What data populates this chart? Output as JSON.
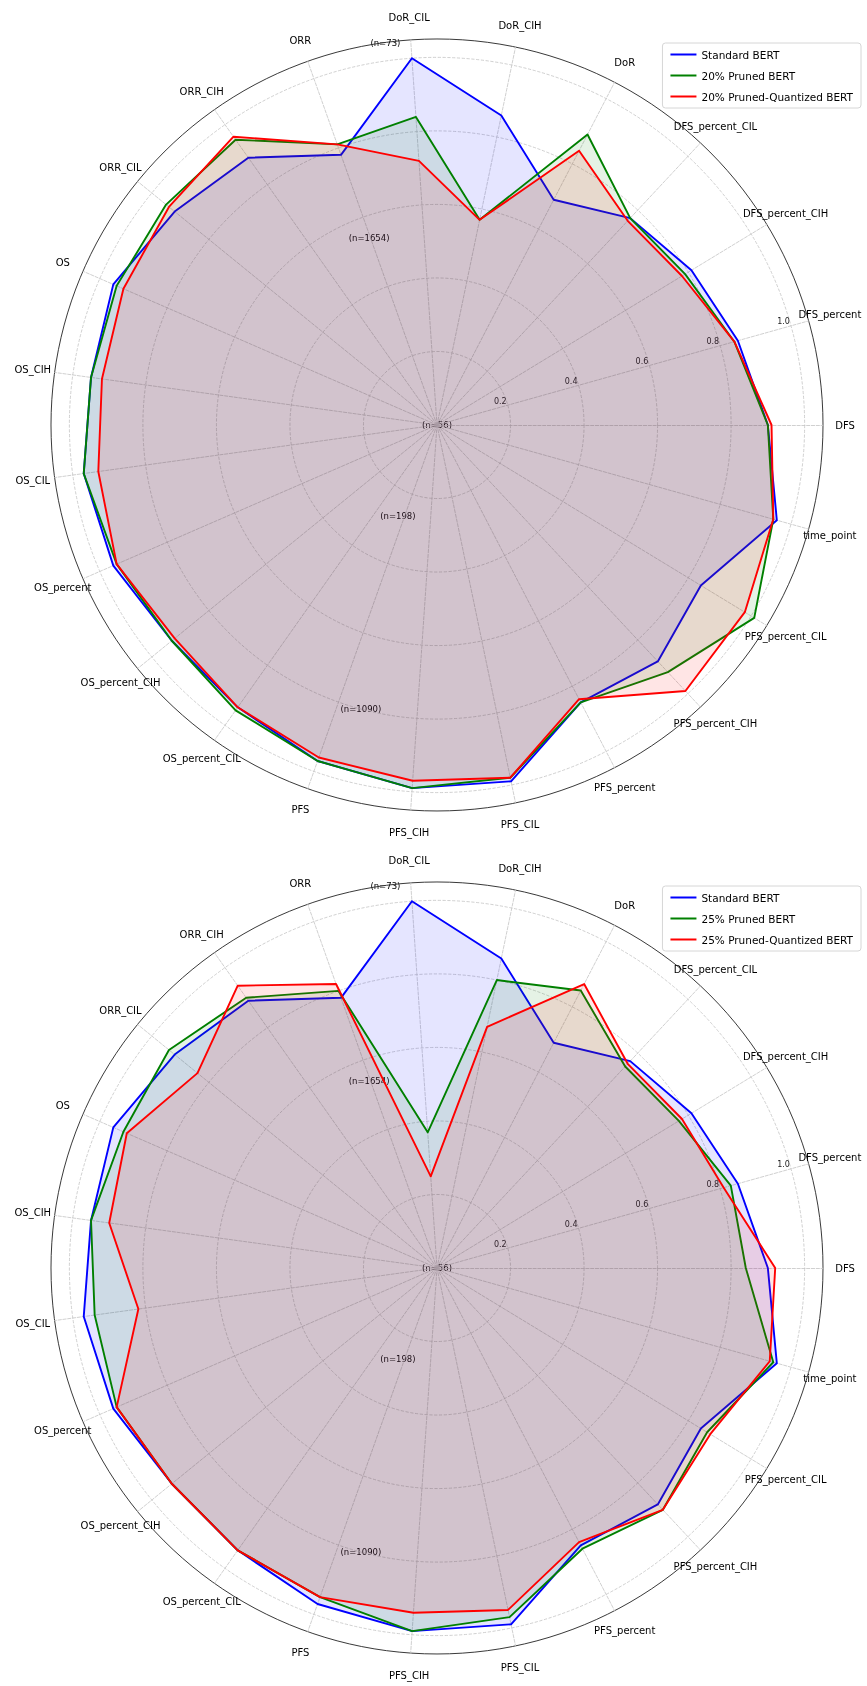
{
  "chart_data": [
    {
      "type": "radar",
      "categories": [
        "DoR_CIL",
        "DoR_CIH",
        "DoR",
        "DFS_percent_CIL",
        "DFS_percent_CIH",
        "DFS_percent",
        "DFS",
        "time_point",
        "PFS_percent_CIL",
        "PFS_percent_CIH",
        "PFS_percent",
        "PFS_CIL",
        "PFS_CIH",
        "PFS",
        "OS_percent_CIL",
        "OS_percent_CIH",
        "OS_percent",
        "OS_CIL",
        "OS_CIH",
        "OS",
        "ORR_CIL",
        "ORR_CIH",
        "ORR"
      ],
      "series": [
        {
          "name": "Standard BERT",
          "color": "#0000ff",
          "values": [
            1.0,
            0.86,
            0.69,
            0.77,
            0.81,
            0.85,
            0.9,
            0.96,
            0.84,
            0.88,
            0.85,
            0.99,
            0.99,
            0.97,
            0.94,
            0.93,
            0.96,
            0.97,
            0.95,
            0.96,
            0.92,
            0.89,
            0.78
          ]
        },
        {
          "name": "20% Pruned BERT",
          "color": "#008000",
          "values": [
            0.84,
            0.57,
            0.89,
            0.77,
            0.79,
            0.84,
            0.9,
            0.95,
            1.01,
            0.92,
            0.85,
            0.98,
            0.99,
            0.97,
            0.95,
            0.93,
            0.95,
            0.97,
            0.95,
            0.95,
            0.95,
            0.95,
            0.81
          ]
        },
        {
          "name": "20% Pruned-Quantized BERT",
          "color": "#ff0000",
          "values": [
            0.72,
            0.57,
            0.84,
            0.76,
            0.78,
            0.84,
            0.91,
            0.95,
            0.98,
            0.99,
            0.84,
            0.98,
            0.97,
            0.96,
            0.94,
            0.92,
            0.95,
            0.93,
            0.92,
            0.93,
            0.94,
            0.96,
            0.81
          ]
        }
      ],
      "ylim": [
        0,
        1.05
      ],
      "yticks": [
        0.2,
        0.4,
        0.6,
        0.8,
        {
          "value": 1.0,
          "label": "1.0"
        }
      ],
      "grid": true,
      "legend": "top right",
      "annotations": [
        "(n=73)",
        "(n=1654)",
        "(n=56)",
        "(n=198)",
        "(n=1090)"
      ]
    },
    {
      "type": "radar",
      "categories": [
        "DoR_CIL",
        "DoR_CIH",
        "DoR",
        "DFS_percent_CIL",
        "DFS_percent_CIH",
        "DFS_percent",
        "DFS",
        "time_point",
        "PFS_percent_CIL",
        "PFS_percent_CIH",
        "PFS_percent",
        "PFS_CIL",
        "PFS_CIH",
        "PFS",
        "OS_percent_CIL",
        "OS_percent_CIH",
        "OS_percent",
        "OS_CIL",
        "OS_CIH",
        "OS",
        "ORR_CIL",
        "ORR_CIH",
        "ORR"
      ],
      "series": [
        {
          "name": "Standard BERT",
          "color": "#0000ff",
          "values": [
            1.0,
            0.86,
            0.69,
            0.77,
            0.81,
            0.85,
            0.9,
            0.96,
            0.84,
            0.88,
            0.85,
            0.99,
            0.99,
            0.97,
            0.94,
            0.93,
            0.96,
            0.97,
            0.95,
            0.96,
            0.92,
            0.89,
            0.78
          ]
        },
        {
          "name": "25% Pruned BERT",
          "color": "#008000",
          "values": [
            0.37,
            0.8,
            0.85,
            0.75,
            0.77,
            0.83,
            0.84,
            0.95,
            0.86,
            0.9,
            0.86,
            0.97,
            0.99,
            0.95,
            0.94,
            0.93,
            0.95,
            0.94,
            0.95,
            0.93,
            0.94,
            0.9,
            0.8
          ]
        },
        {
          "name": "25% Pruned-Quantized BERT",
          "color": "#ff0000",
          "values": [
            0.25,
            0.67,
            0.87,
            0.76,
            0.78,
            0.81,
            0.92,
            0.94,
            0.87,
            0.9,
            0.84,
            0.95,
            0.94,
            0.95,
            0.94,
            0.93,
            0.95,
            0.82,
            0.9,
            0.92,
            0.84,
            0.94,
            0.82
          ]
        }
      ],
      "ylim": [
        0,
        1.05
      ],
      "yticks": [
        0.2,
        0.4,
        0.6,
        0.8,
        {
          "value": 1.0,
          "label": "1.0"
        }
      ],
      "grid": true,
      "legend": "top right",
      "annotations": [
        "(n=73)",
        "(n=1654)",
        "(n=56)",
        "(n=198)",
        "(n=1090)"
      ]
    }
  ]
}
